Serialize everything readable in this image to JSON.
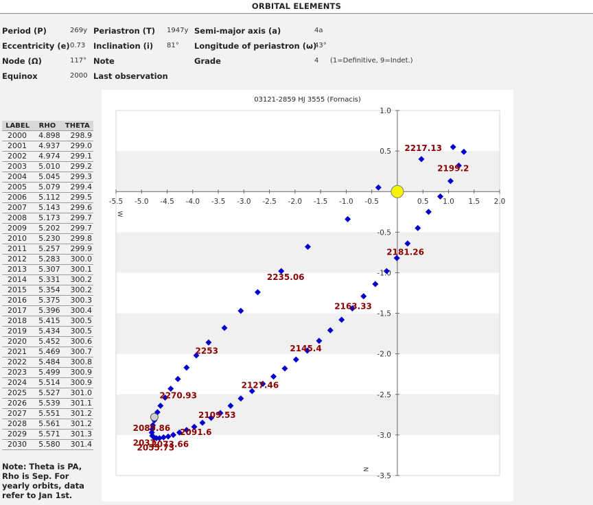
{
  "header": {
    "title": "ORBITAL ELEMENTS"
  },
  "elements": {
    "period_label": "Period (P)",
    "period_value": "269y",
    "periastron_label": "Periastron (T)",
    "periastron_value": "1947y",
    "semimajor_label": "Semi-major axis (a)",
    "semimajor_value": "4a",
    "ecc_label": "Eccentricity (e)",
    "ecc_value": "0.73",
    "incl_label": "Inclination (i)",
    "incl_value": "81°",
    "longperi_label": "Longitude of periastron (ω)",
    "longperi_value": "43°",
    "node_label": "Node (Ω)",
    "node_value": "117°",
    "note_label": "Note",
    "grade_label": "Grade",
    "grade_value": "4",
    "grade_note": "(1=Definitive, 9=Indet.)",
    "equinox_label": "Equinox",
    "equinox_value": "2000",
    "lastobs_label": "Last observation"
  },
  "table": {
    "headers": [
      "LABEL",
      "RHO",
      "THETA"
    ],
    "rows": [
      [
        "2000",
        "4.898",
        "298.9"
      ],
      [
        "2001",
        "4.937",
        "299.0"
      ],
      [
        "2002",
        "4.974",
        "299.1"
      ],
      [
        "2003",
        "5.010",
        "299.2"
      ],
      [
        "2004",
        "5.045",
        "299.3"
      ],
      [
        "2005",
        "5.079",
        "299.4"
      ],
      [
        "2006",
        "5.112",
        "299.5"
      ],
      [
        "2007",
        "5.143",
        "299.6"
      ],
      [
        "2008",
        "5.173",
        "299.7"
      ],
      [
        "2009",
        "5.202",
        "299.7"
      ],
      [
        "2010",
        "5.230",
        "299.8"
      ],
      [
        "2011",
        "5.257",
        "299.9"
      ],
      [
        "2012",
        "5.283",
        "300.0"
      ],
      [
        "2013",
        "5.307",
        "300.1"
      ],
      [
        "2014",
        "5.331",
        "300.2"
      ],
      [
        "2015",
        "5.354",
        "300.2"
      ],
      [
        "2016",
        "5.375",
        "300.3"
      ],
      [
        "2017",
        "5.396",
        "300.4"
      ],
      [
        "2018",
        "5.415",
        "300.5"
      ],
      [
        "2019",
        "5.434",
        "300.5"
      ],
      [
        "2020",
        "5.452",
        "300.6"
      ],
      [
        "2021",
        "5.469",
        "300.7"
      ],
      [
        "2022",
        "5.484",
        "300.8"
      ],
      [
        "2023",
        "5.499",
        "300.9"
      ],
      [
        "2024",
        "5.514",
        "300.9"
      ],
      [
        "2025",
        "5.527",
        "301.0"
      ],
      [
        "2026",
        "5.539",
        "301.1"
      ],
      [
        "2027",
        "5.551",
        "301.2"
      ],
      [
        "2028",
        "5.561",
        "301.2"
      ],
      [
        "2029",
        "5.571",
        "301.3"
      ],
      [
        "2030",
        "5.580",
        "301.4"
      ]
    ]
  },
  "note": "Note: Theta is PA, Rho is Sep. For yearly orbits, data refer to Jan 1st.",
  "chart_data": {
    "type": "scatter",
    "title": "03121-2859 HJ 3555 (Fornacis)",
    "xlim": [
      -5.5,
      2.0
    ],
    "ylim": [
      -3.5,
      1.0
    ],
    "x_ticks": [
      -5.5,
      -5.0,
      -4.5,
      -4.0,
      -3.5,
      -3.0,
      -2.5,
      -2.0,
      -1.5,
      -1.0,
      -0.5,
      0.5,
      1.0,
      1.5,
      2.0
    ],
    "x_tick_labels": [
      "-5.5",
      "-5.0",
      "-4.5",
      "-4.0",
      "-3.5",
      "-3.0",
      "-2.5",
      "-2.0",
      "-1.5",
      "-1.0",
      "-0.5",
      "0.5",
      "1.0",
      "1.5",
      "2.0"
    ],
    "y_ticks": [
      1.0,
      0.5,
      -0.5,
      -1.0,
      -1.5,
      -2.0,
      -2.5,
      -3.0,
      -3.5
    ],
    "y_tick_labels": [
      "1.0",
      "0.5",
      "-0.5",
      "-1.0",
      "-1.5",
      "-2.0",
      "-2.5",
      "-3.0",
      "-3.5"
    ],
    "axis_letter_x": "W",
    "axis_letter_y": "N",
    "band_color": "#f0f0f0",
    "point_color": "#0000cc",
    "label_color": "#8b0000",
    "primary_color": "#f5f500",
    "orbit_points": [
      [
        -0.37,
        0.05
      ],
      [
        -0.97,
        -0.34
      ],
      [
        -1.75,
        -0.68
      ],
      [
        -2.27,
        -0.98
      ],
      [
        -2.73,
        -1.24
      ],
      [
        -3.06,
        -1.47
      ],
      [
        -3.38,
        -1.68
      ],
      [
        -3.69,
        -1.86
      ],
      [
        -3.93,
        -2.02
      ],
      [
        -4.12,
        -2.17
      ],
      [
        -4.29,
        -2.31
      ],
      [
        -4.43,
        -2.43
      ],
      [
        -4.54,
        -2.54
      ],
      [
        -4.63,
        -2.64
      ],
      [
        -4.69,
        -2.72
      ],
      [
        -4.75,
        -2.82
      ],
      [
        -4.78,
        -2.88
      ],
      [
        -4.79,
        -2.93
      ],
      [
        -4.8,
        -2.97
      ],
      [
        -4.79,
        -3.01
      ],
      [
        -4.76,
        -3.03
      ],
      [
        -4.71,
        -3.04
      ],
      [
        -4.65,
        -3.04
      ],
      [
        -4.57,
        -3.03
      ],
      [
        -4.48,
        -3.02
      ],
      [
        -4.38,
        -3.0
      ],
      [
        -4.26,
        -2.97
      ],
      [
        -4.12,
        -2.94
      ],
      [
        -3.97,
        -2.9
      ],
      [
        -3.81,
        -2.85
      ],
      [
        -3.64,
        -2.79
      ],
      [
        -3.46,
        -2.73
      ],
      [
        -3.26,
        -2.64
      ],
      [
        -3.06,
        -2.55
      ],
      [
        -2.84,
        -2.46
      ],
      [
        -2.63,
        -2.37
      ],
      [
        -2.42,
        -2.28
      ],
      [
        -2.2,
        -2.18
      ],
      [
        -1.98,
        -2.07
      ],
      [
        -1.76,
        -1.96
      ],
      [
        -1.53,
        -1.84
      ],
      [
        -1.31,
        -1.71
      ],
      [
        -1.09,
        -1.58
      ],
      [
        -0.88,
        -1.44
      ],
      [
        -0.66,
        -1.29
      ],
      [
        -0.43,
        -1.14
      ],
      [
        -0.21,
        -0.98
      ],
      [
        -0.01,
        -0.82
      ],
      [
        0.2,
        -0.64
      ],
      [
        0.4,
        -0.45
      ],
      [
        0.61,
        -0.25
      ],
      [
        0.84,
        -0.06
      ],
      [
        1.04,
        0.13
      ],
      [
        1.2,
        0.32
      ],
      [
        1.3,
        0.49
      ],
      [
        1.09,
        0.55
      ],
      [
        0.47,
        0.4
      ]
    ],
    "observed_point": [
      -4.75,
      -2.78
    ],
    "point_labels": [
      {
        "text": "2217.13",
        "x": 0.14,
        "y": 0.5
      },
      {
        "text": "2199.2",
        "x": 0.78,
        "y": 0.25
      },
      {
        "text": "2181.26",
        "x": -0.21,
        "y": -0.78
      },
      {
        "text": "2235.06",
        "x": -2.55,
        "y": -1.09
      },
      {
        "text": "2163.33",
        "x": -1.23,
        "y": -1.45
      },
      {
        "text": "2253",
        "x": -3.95,
        "y": -2.0
      },
      {
        "text": "2145.4",
        "x": -2.1,
        "y": -1.97
      },
      {
        "text": "2127.46",
        "x": -3.05,
        "y": -2.42
      },
      {
        "text": "2270.93",
        "x": -4.65,
        "y": -2.55
      },
      {
        "text": "2109.53",
        "x": -3.89,
        "y": -2.79
      },
      {
        "text": "2089.86",
        "x": -5.17,
        "y": -2.95
      },
      {
        "text": "2091.6",
        "x": -4.25,
        "y": -3.0
      },
      {
        "text": "2037.",
        "x": -5.17,
        "y": -3.13
      },
      {
        "text": "2073.66",
        "x": -4.81,
        "y": -3.15
      },
      {
        "text": "2055.73",
        "x": -5.09,
        "y": -3.19
      }
    ]
  }
}
